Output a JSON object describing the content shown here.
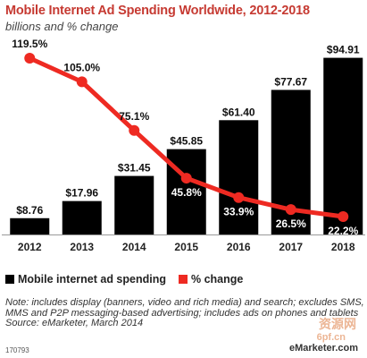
{
  "title": "Mobile Internet Ad Spending Worldwide, 2012-2018",
  "subtitle": "billions and % change",
  "legend": {
    "bar_label": "Mobile internet ad spending",
    "line_label": "% change"
  },
  "note": "Note: includes display (banners, video and rich media) and search; excludes SMS, MMS and P2P messaging-based advertising; includes ads on phones and tablets",
  "source": "Source: eMarketer, March 2014",
  "chart_id": "170793",
  "brand": "eMarketer.com",
  "watermark": "资源网",
  "watermark2": "6pf.cn",
  "colors": {
    "title": "#c63a32",
    "bar": "#000000",
    "line": "#ee2a22"
  },
  "chart_data": {
    "type": "bar",
    "categories": [
      "2012",
      "2013",
      "2014",
      "2015",
      "2016",
      "2017",
      "2018"
    ],
    "series": [
      {
        "name": "Mobile internet ad spending",
        "type": "bar",
        "values": [
          8.76,
          17.96,
          31.45,
          45.85,
          61.4,
          77.67,
          94.91
        ],
        "labels": [
          "$8.76",
          "$17.96",
          "$31.45",
          "$45.85",
          "$61.40",
          "$77.67",
          "$94.91"
        ]
      },
      {
        "name": "% change",
        "type": "line",
        "values": [
          119.5,
          105.0,
          75.1,
          45.8,
          33.9,
          26.5,
          22.2
        ],
        "labels": [
          "119.5%",
          "105.0%",
          "75.1%",
          "45.8%",
          "33.9%",
          "26.5%",
          "22.2%"
        ]
      }
    ],
    "grid": false,
    "legend_position": "bottom-left"
  }
}
